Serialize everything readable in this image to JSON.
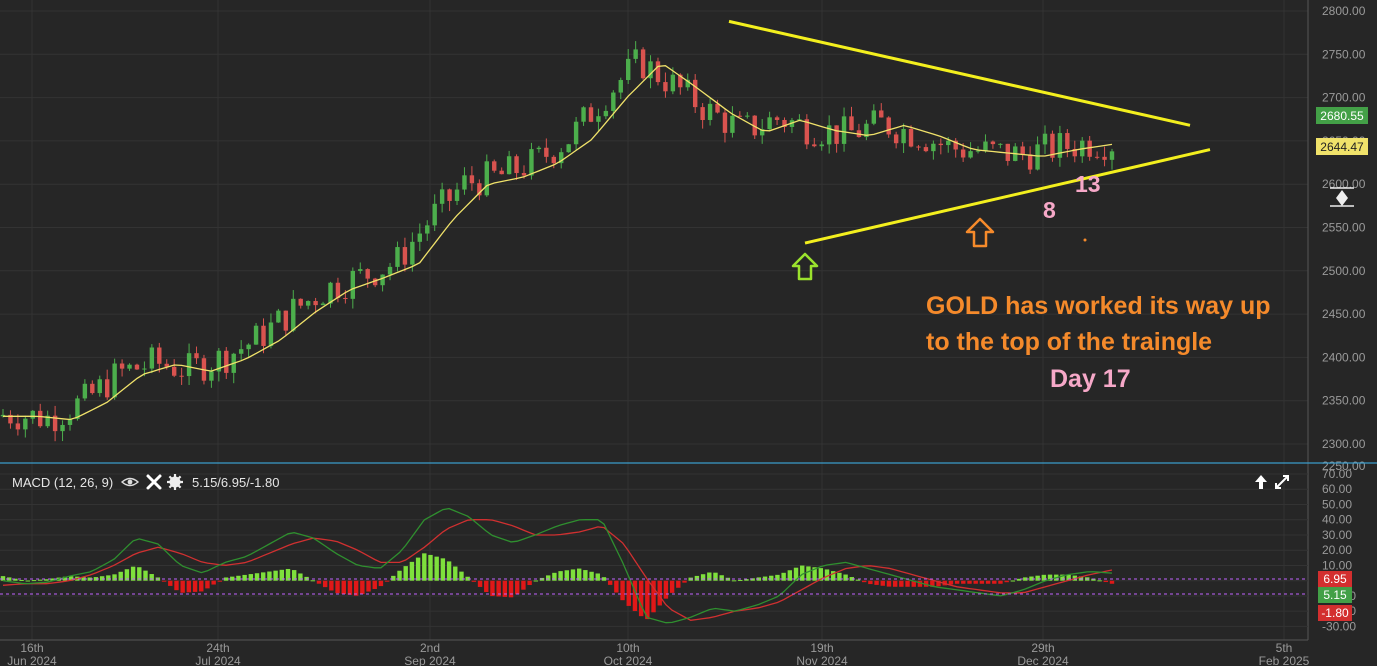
{
  "chart_data": [
    {
      "type": "candlestick",
      "title": "",
      "ylim": [
        2285,
        2815
      ],
      "y_ticks": [
        "2800.00",
        "2750.00",
        "2700.00",
        "2650.00",
        "2600.00",
        "2550.00",
        "2500.00",
        "2450.00",
        "2400.00",
        "2350.00",
        "2300.00",
        "2250.00"
      ],
      "x_ticks": [
        {
          "day": "16th",
          "month": "Jun 2024"
        },
        {
          "day": "24th",
          "month": "Jul 2024"
        },
        {
          "day": "2nd",
          "month": "Sep 2024"
        },
        {
          "day": "10th",
          "month": "Oct 2024"
        },
        {
          "day": "19th",
          "month": "Nov 2024"
        },
        {
          "day": "29th",
          "month": "Dec 2024"
        },
        {
          "day": "5th",
          "month": "Feb 2025"
        }
      ],
      "price_tags": {
        "last": "2680.55",
        "ma": "2644.47"
      },
      "ma_anchor_values": [
        2332,
        2332,
        2328,
        2348,
        2380,
        2392,
        2384,
        2398,
        2420,
        2452,
        2478,
        2492,
        2508,
        2560,
        2600,
        2608,
        2624,
        2652,
        2700,
        2740,
        2712,
        2682,
        2660,
        2674,
        2662,
        2656,
        2668,
        2656,
        2640,
        2636,
        2632,
        2640,
        2646
      ],
      "triangle": {
        "upper_start": 2788,
        "upper_end": 2668,
        "lower_start": 2532,
        "lower_end": 2640
      },
      "annotations": {
        "text_line1": "GOLD has worked its way up",
        "text_line2": "to the top of the traingle",
        "day_label": "Day 17",
        "count_8": "8",
        "count_13": "13"
      },
      "colors": {
        "up": "#4cae4c",
        "down": "#d9534f",
        "ma": "#f0e26a",
        "triangle": "#f3ef1e",
        "annotation": "#f58a2b",
        "count": "#f6a8c8",
        "green_arrow": "#9be22d",
        "orange_arrow": "#f58a2b"
      }
    },
    {
      "type": "macd",
      "title": "MACD (12, 26, 9)",
      "values_text": "5.15/6.95/-1.80",
      "ylim": [
        -33,
        70
      ],
      "y_ticks": [
        "70.00",
        "60.00",
        "50.00",
        "40.00",
        "30.00",
        "20.00",
        "10.00",
        "0.00",
        "-10.00",
        "-20.00",
        "-30.00"
      ],
      "tags": {
        "signal": "6.95",
        "macd": "5.15",
        "hist": "-1.80"
      },
      "macd_anchor_values": [
        0,
        -2,
        -1,
        3,
        6,
        14,
        28,
        24,
        10,
        5,
        12,
        16,
        24,
        32,
        28,
        18,
        10,
        8,
        20,
        40,
        48,
        42,
        30,
        25,
        30,
        36,
        40,
        40,
        10,
        -24,
        -28,
        -24,
        -18,
        -20,
        -16,
        -10,
        4,
        10,
        12,
        8,
        4,
        0,
        -4,
        -6,
        -8,
        -10,
        -6,
        0,
        4,
        6,
        5
      ],
      "signal_anchor_values": [
        -3,
        -2,
        -2,
        0,
        4,
        10,
        18,
        22,
        18,
        12,
        10,
        12,
        18,
        24,
        28,
        26,
        20,
        12,
        12,
        22,
        34,
        40,
        40,
        36,
        30,
        30,
        32,
        36,
        24,
        2,
        -18,
        -26,
        -24,
        -20,
        -18,
        -14,
        -6,
        2,
        8,
        10,
        8,
        4,
        0,
        -4,
        -6,
        -8,
        -8,
        -4,
        0,
        4,
        7
      ],
      "colors": {
        "macd": "#2f8f2f",
        "signal": "#d03030",
        "hist_up": "#7ee03c",
        "hist_down": "#e01818"
      }
    }
  ],
  "toolbar": {
    "eye_icon": "eye-icon",
    "close_icon": "close-icon",
    "gear_icon": "gear-icon",
    "up_arrow_icon": "up-arrow-icon",
    "expand_icon": "expand-icon",
    "scale_icon": "scale-icon"
  }
}
